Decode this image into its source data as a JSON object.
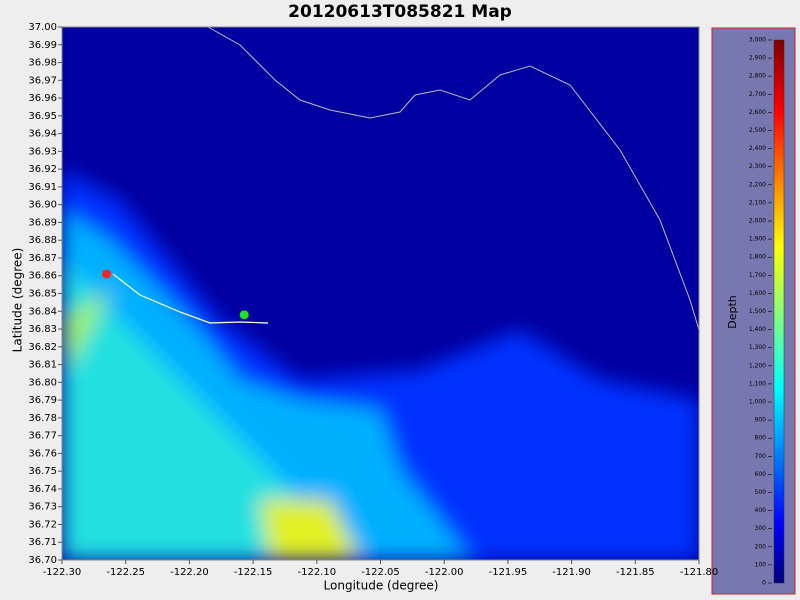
{
  "chart_data": {
    "type": "map",
    "title": "20120613T085821 Map",
    "xlabel": "Longitude (degree)",
    "ylabel": "Latitude (degree)",
    "xlim": [
      -122.3,
      -121.8
    ],
    "xticks": [
      {
        "value": -122.3,
        "label": "-122.30"
      },
      -122.25,
      {
        "value": -122.2,
        "label": "-122.20"
      },
      -122.15,
      {
        "value": -122.1,
        "label": "-122.10"
      },
      -122.05,
      {
        "value": -122.0,
        "label": "-122.00"
      },
      -121.95,
      {
        "value": -121.9,
        "label": "-121.90"
      },
      -121.85,
      {
        "value": -121.8,
        "label": "-121.80"
      }
    ],
    "ylim": [
      36.7,
      37.0
    ],
    "yticks": [
      {
        "value": 36.7,
        "label": "36.70"
      },
      36.71,
      36.72,
      36.73,
      36.74,
      36.75,
      36.76,
      36.77,
      36.78,
      36.79,
      {
        "value": 36.8,
        "label": "36.80"
      },
      36.81,
      36.82,
      36.83,
      36.84,
      36.85,
      36.86,
      36.87,
      36.88,
      36.89,
      {
        "value": 36.9,
        "label": "36.90"
      },
      36.91,
      36.92,
      36.93,
      36.94,
      36.95,
      36.96,
      36.97,
      36.98,
      36.99,
      {
        "value": 37.0,
        "label": "37.00"
      }
    ],
    "points": {
      "x": [
        -122.265,
        -122.157
      ],
      "y": [
        36.861,
        36.838
      ],
      "colors": [
        "#ff2020",
        "#20e020"
      ]
    },
    "colorbar": {
      "label": "Depth",
      "lim": [
        0,
        3000
      ],
      "ticks": [
        0,
        100,
        200,
        300,
        400,
        500,
        600,
        700,
        800,
        900,
        {
          "value": 1000,
          "label": "1,000"
        },
        {
          "value": 1100,
          "label": "1,100"
        },
        {
          "value": 1200,
          "label": "1,200"
        },
        {
          "value": 1300,
          "label": "1,300"
        },
        {
          "value": 1400,
          "label": "1,400"
        },
        {
          "value": 1500,
          "label": "1,500"
        },
        {
          "value": 1600,
          "label": "1,600"
        },
        {
          "value": 1700,
          "label": "1,700"
        },
        {
          "value": 1800,
          "label": "1,800"
        },
        {
          "value": 1900,
          "label": "1,900"
        },
        {
          "value": 2000,
          "label": "2,000"
        },
        {
          "value": 2100,
          "label": "2,100"
        },
        {
          "value": 2200,
          "label": "2,200"
        },
        {
          "value": 2300,
          "label": "2,300"
        },
        {
          "value": 2400,
          "label": "2,400"
        },
        {
          "value": 2500,
          "label": "2,500"
        },
        {
          "value": 2600,
          "label": "2,600"
        },
        {
          "value": 2700,
          "label": "2,700"
        },
        {
          "value": 2800,
          "label": "2,800"
        },
        {
          "value": 2900,
          "label": "2,900"
        },
        {
          "value": 3000,
          "label": "3,000"
        }
      ]
    }
  }
}
